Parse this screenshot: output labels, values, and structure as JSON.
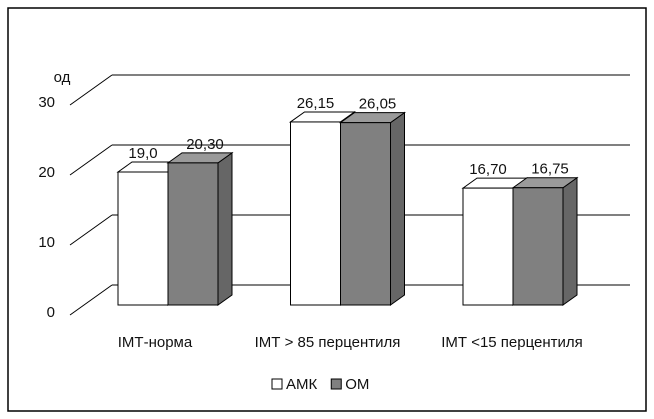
{
  "chart_data": {
    "type": "bar3d",
    "y_label": "од",
    "categories": [
      "ІМТ-норма",
      "ІМТ > 85 перцентиля",
      "ІМТ <15 перцентиля"
    ],
    "series": [
      {
        "name": "АМК",
        "color": "#ffffff",
        "values": [
          19.0,
          26.15,
          16.7
        ],
        "value_labels": [
          "19,0",
          "26,15",
          "16,70"
        ]
      },
      {
        "name": "ОМ",
        "color": "#808080",
        "values": [
          20.3,
          26.05,
          16.75
        ],
        "value_labels": [
          "20,30",
          "26,05",
          "16,75"
        ]
      }
    ],
    "ylim": [
      0,
      30
    ],
    "yticks": [
      0,
      10,
      20,
      30
    ],
    "grid": true,
    "legend": "bottom"
  }
}
